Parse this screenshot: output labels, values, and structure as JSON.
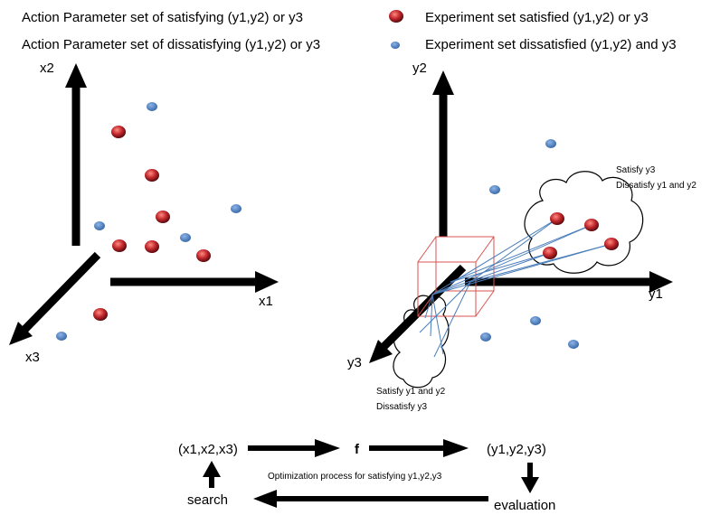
{
  "legend": {
    "satisfying_param_set": "Action Parameter set of satisfying (y1,y2) or y3",
    "dissatisfying_param_set": "Action Parameter set of dissatisfying (y1,y2) or y3 ",
    "satisfied_experiment_set": "Experiment set satisfied (y1,y2) or y3 ",
    "dissatisfied_experiment_set": "Experiment set dissatisfied (y1,y2) and y3"
  },
  "colors": {
    "satisfied_marker": "#c0262b",
    "dissatisfied_marker": "#4a7ebb",
    "arrow": "#000000",
    "projection_box": "#d9534f",
    "mapping_lines": "#4a7ebb"
  },
  "input_space": {
    "axis_labels": {
      "x1": "x1",
      "x2": "x2",
      "x3": "x3"
    }
  },
  "output_space": {
    "axis_labels": {
      "y1": "y1",
      "y2": "y2",
      "y3": "y3"
    },
    "cloud_top_note": [
      "Satisfy y3",
      "Dissatisfy y1 and y2"
    ],
    "cloud_bottom_note": [
      "Satisfy y1 and y2",
      "Dissatisfy y3"
    ]
  },
  "flow": {
    "inputs": "(x1,x2,x3)",
    "function": "f",
    "outputs": "(y1,y2,y3)",
    "caption": "Optimization process for satisfying y1,y2,y3",
    "search": "search",
    "evaluation": "evaluation"
  }
}
